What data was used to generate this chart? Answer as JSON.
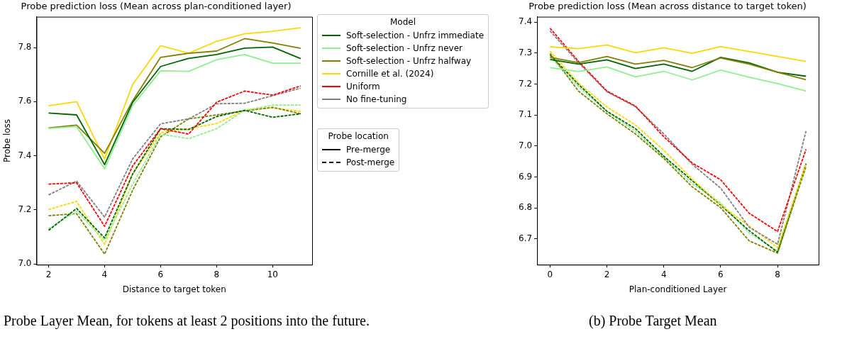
{
  "chart_data": [
    {
      "type": "line",
      "title": "Probe prediction loss (Mean across plan-conditioned layer)",
      "xlabel": "Distance to target token",
      "ylabel": "Probe loss",
      "legend": "right",
      "legend_title": "Model",
      "x": [
        2,
        3,
        4,
        5,
        6,
        7,
        8,
        9,
        10,
        11
      ],
      "xlim": [
        1.57,
        11.41
      ],
      "xticks": [
        2,
        4,
        6,
        8,
        10
      ],
      "ylim": [
        6.997,
        7.914
      ],
      "yticks": [
        {
          "value": 7,
          "label": "7.0"
        },
        7.2,
        7.4,
        7.6,
        7.8
      ],
      "series": [
        {
          "name": "Soft-selection - Unfrz immediate",
          "color": "#006400",
          "line_style": "solid",
          "values": [
            7.558,
            7.551,
            7.367,
            7.597,
            7.73,
            7.76,
            7.774,
            7.798,
            7.802,
            7.759
          ]
        },
        {
          "name": "Soft-selection - Unfrz never",
          "color": "#90ee90",
          "line_style": "solid",
          "values": [
            7.501,
            7.508,
            7.352,
            7.585,
            7.714,
            7.712,
            7.755,
            7.774,
            7.742,
            7.742
          ]
        },
        {
          "name": "Soft-selection - Unfrz halfway",
          "color": "#808000",
          "line_style": "solid",
          "values": [
            7.503,
            7.513,
            7.409,
            7.603,
            7.764,
            7.779,
            7.787,
            7.833,
            7.817,
            7.797
          ]
        },
        {
          "name": "Cornille et al. (2024)",
          "color": "#ffd700",
          "line_style": "solid",
          "values": [
            7.585,
            7.6,
            7.388,
            7.663,
            7.807,
            7.779,
            7.823,
            7.851,
            7.86,
            7.873
          ]
        },
        {
          "name": "Uniform",
          "color": "#ff0000",
          "line_style": "dashed",
          "values": [
            7.295,
            7.3,
            7.139,
            7.362,
            7.5,
            7.48,
            7.598,
            7.639,
            7.624,
            7.658
          ]
        },
        {
          "name": "No fine-tuning",
          "color": "#808080",
          "line_style": "dashed",
          "values": [
            7.255,
            7.306,
            7.173,
            7.388,
            7.518,
            7.536,
            7.592,
            7.594,
            7.622,
            7.65
          ]
        },
        {
          "color": "#006400",
          "line_style": "dashed",
          "values": [
            7.124,
            7.205,
            7.096,
            7.332,
            7.5,
            7.497,
            7.545,
            7.568,
            7.542,
            7.555
          ]
        },
        {
          "color": "#90ee90",
          "line_style": "dashed",
          "values": [
            7.13,
            7.195,
            7.088,
            7.294,
            7.48,
            7.463,
            7.5,
            7.568,
            7.587,
            7.587
          ]
        },
        {
          "color": "#808000",
          "line_style": "dashed",
          "values": [
            7.178,
            7.186,
            7.036,
            7.272,
            7.47,
            7.536,
            7.551,
            7.566,
            7.579,
            7.555
          ]
        },
        {
          "color": "#ffd700",
          "line_style": "dashed",
          "values": [
            7.201,
            7.231,
            7.072,
            7.332,
            7.485,
            7.5,
            7.519,
            7.568,
            7.577,
            7.564
          ]
        }
      ],
      "annotations": [
        "Probe location",
        "Pre-merge",
        "Post-merge",
        "Probe Layer Mean, for tokens at least 2 positions into the future."
      ]
    },
    {
      "type": "line",
      "title": "Probe prediction loss (Mean across distance to target token)",
      "xlabel": "Plan-conditioned Layer",
      "x": [
        0,
        1,
        2,
        3,
        4,
        5,
        6,
        7,
        8,
        9
      ],
      "xlim": [
        -0.457,
        9.444
      ],
      "xticks": [
        0,
        2,
        4,
        6,
        8
      ],
      "ylim": [
        6.617,
        7.417
      ],
      "yticks": [
        6.7,
        6.8,
        6.9,
        {
          "value": 7,
          "label": "7.0"
        },
        7.1,
        7.2,
        7.3,
        7.4
      ],
      "series": [
        {
          "color": "#ffd700",
          "line_style": "solid",
          "values": [
            7.32,
            7.314,
            7.326,
            7.301,
            7.317,
            7.299,
            7.321,
            7.305,
            7.289,
            7.273
          ]
        },
        {
          "color": "#808000",
          "line_style": "solid",
          "values": [
            7.286,
            7.269,
            7.289,
            7.264,
            7.276,
            7.253,
            7.284,
            7.264,
            7.238,
            7.214
          ]
        },
        {
          "color": "#006400",
          "line_style": "solid",
          "values": [
            7.279,
            7.264,
            7.278,
            7.25,
            7.264,
            7.241,
            7.286,
            7.268,
            7.238,
            7.225
          ]
        },
        {
          "color": "#90ee90",
          "line_style": "solid",
          "values": [
            7.253,
            7.24,
            7.255,
            7.223,
            7.241,
            7.213,
            7.245,
            7.222,
            7.201,
            7.177
          ]
        },
        {
          "color": "#ff0000",
          "line_style": "dashed",
          "values": [
            7.38,
            7.273,
            7.177,
            7.129,
            7.03,
            6.945,
            6.891,
            6.783,
            6.724,
            6.989
          ]
        },
        {
          "color": "#808080",
          "line_style": "dashed",
          "values": [
            7.371,
            7.269,
            7.175,
            7.127,
            7.039,
            6.941,
            6.864,
            6.738,
            6.683,
            7.048
          ]
        },
        {
          "color": "#ffd700",
          "line_style": "dashed",
          "values": [
            7.306,
            7.203,
            7.126,
            7.068,
            6.986,
            6.893,
            6.809,
            6.742,
            6.672,
            6.941
          ]
        },
        {
          "color": "#808000",
          "line_style": "dashed",
          "values": [
            7.299,
            7.177,
            7.104,
            7.039,
            6.96,
            6.868,
            6.801,
            6.694,
            6.654,
            6.934
          ]
        },
        {
          "color": "#006400",
          "line_style": "dashed",
          "values": [
            7.294,
            7.199,
            7.112,
            7.056,
            6.967,
            6.888,
            6.809,
            6.727,
            6.657,
            6.943
          ]
        },
        {
          "color": "#90ee90",
          "line_style": "dashed",
          "values": [
            7.288,
            7.192,
            7.111,
            7.048,
            6.963,
            6.879,
            6.816,
            6.72,
            6.661,
            6.941
          ]
        }
      ],
      "annotations": [
        "(b) Probe Target Mean"
      ]
    }
  ]
}
